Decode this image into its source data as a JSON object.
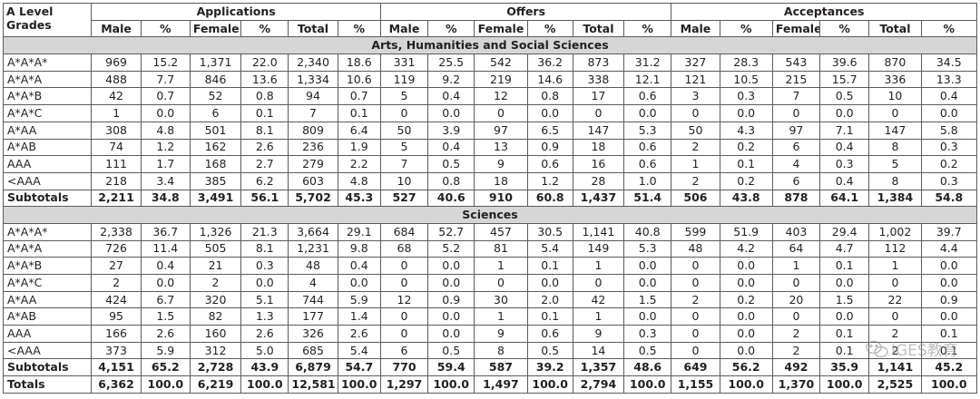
{
  "header": {
    "grades_label_line1": "A Level",
    "grades_label_line2": "Grades",
    "groups": [
      "Applications",
      "Offers",
      "Acceptances"
    ],
    "columns": [
      "Male",
      "%",
      "Female",
      "%",
      "Total",
      "%"
    ]
  },
  "sections": [
    {
      "title": "Arts, Humanities and Social Sciences",
      "rows": [
        {
          "grade": "A*A*A*",
          "cells": [
            "969",
            "15.2",
            "1,371",
            "22.0",
            "2,340",
            "18.6",
            "331",
            "25.5",
            "542",
            "36.2",
            "873",
            "31.2",
            "327",
            "28.3",
            "543",
            "39.6",
            "870",
            "34.5"
          ]
        },
        {
          "grade": "A*A*A",
          "cells": [
            "488",
            "7.7",
            "846",
            "13.6",
            "1,334",
            "10.6",
            "119",
            "9.2",
            "219",
            "14.6",
            "338",
            "12.1",
            "121",
            "10.5",
            "215",
            "15.7",
            "336",
            "13.3"
          ]
        },
        {
          "grade": "A*A*B",
          "cells": [
            "42",
            "0.7",
            "52",
            "0.8",
            "94",
            "0.7",
            "5",
            "0.4",
            "12",
            "0.8",
            "17",
            "0.6",
            "3",
            "0.3",
            "7",
            "0.5",
            "10",
            "0.4"
          ]
        },
        {
          "grade": "A*A*C",
          "cells": [
            "1",
            "0.0",
            "6",
            "0.1",
            "7",
            "0.1",
            "0",
            "0.0",
            "0",
            "0.0",
            "0",
            "0.0",
            "0",
            "0.0",
            "0",
            "0.0",
            "0",
            "0.0"
          ]
        },
        {
          "grade": "A*AA",
          "cells": [
            "308",
            "4.8",
            "501",
            "8.1",
            "809",
            "6.4",
            "50",
            "3.9",
            "97",
            "6.5",
            "147",
            "5.3",
            "50",
            "4.3",
            "97",
            "7.1",
            "147",
            "5.8"
          ]
        },
        {
          "grade": "A*AB",
          "cells": [
            "74",
            "1.2",
            "162",
            "2.6",
            "236",
            "1.9",
            "5",
            "0.4",
            "13",
            "0.9",
            "18",
            "0.6",
            "2",
            "0.2",
            "6",
            "0.4",
            "8",
            "0.3"
          ]
        },
        {
          "grade": "AAA",
          "cells": [
            "111",
            "1.7",
            "168",
            "2.7",
            "279",
            "2.2",
            "7",
            "0.5",
            "9",
            "0.6",
            "16",
            "0.6",
            "1",
            "0.1",
            "4",
            "0.3",
            "5",
            "0.2"
          ]
        },
        {
          "grade": "<AAA",
          "cells": [
            "218",
            "3.4",
            "385",
            "6.2",
            "603",
            "4.8",
            "10",
            "0.8",
            "18",
            "1.2",
            "28",
            "1.0",
            "2",
            "0.2",
            "6",
            "0.4",
            "8",
            "0.3"
          ]
        }
      ],
      "subtotal": {
        "label": "Subtotals",
        "cells": [
          "2,211",
          "34.8",
          "3,491",
          "56.1",
          "5,702",
          "45.3",
          "527",
          "40.6",
          "910",
          "60.8",
          "1,437",
          "51.4",
          "506",
          "43.8",
          "878",
          "64.1",
          "1,384",
          "54.8"
        ]
      }
    },
    {
      "title": "Sciences",
      "rows": [
        {
          "grade": "A*A*A*",
          "cells": [
            "2,338",
            "36.7",
            "1,326",
            "21.3",
            "3,664",
            "29.1",
            "684",
            "52.7",
            "457",
            "30.5",
            "1,141",
            "40.8",
            "599",
            "51.9",
            "403",
            "29.4",
            "1,002",
            "39.7"
          ]
        },
        {
          "grade": "A*A*A",
          "cells": [
            "726",
            "11.4",
            "505",
            "8.1",
            "1,231",
            "9.8",
            "68",
            "5.2",
            "81",
            "5.4",
            "149",
            "5.3",
            "48",
            "4.2",
            "64",
            "4.7",
            "112",
            "4.4"
          ]
        },
        {
          "grade": "A*A*B",
          "cells": [
            "27",
            "0.4",
            "21",
            "0.3",
            "48",
            "0.4",
            "0",
            "0.0",
            "1",
            "0.1",
            "1",
            "0.0",
            "0",
            "0.0",
            "1",
            "0.1",
            "1",
            "0.0"
          ]
        },
        {
          "grade": "A*A*C",
          "cells": [
            "2",
            "0.0",
            "2",
            "0.0",
            "4",
            "0.0",
            "0",
            "0.0",
            "0",
            "0.0",
            "0",
            "0.0",
            "0",
            "0.0",
            "0",
            "0.0",
            "0",
            "0.0"
          ]
        },
        {
          "grade": "A*AA",
          "cells": [
            "424",
            "6.7",
            "320",
            "5.1",
            "744",
            "5.9",
            "12",
            "0.9",
            "30",
            "2.0",
            "42",
            "1.5",
            "2",
            "0.2",
            "20",
            "1.5",
            "22",
            "0.9"
          ]
        },
        {
          "grade": "A*AB",
          "cells": [
            "95",
            "1.5",
            "82",
            "1.3",
            "177",
            "1.4",
            "0",
            "0.0",
            "1",
            "0.1",
            "1",
            "0.0",
            "0",
            "0.0",
            "0",
            "0.0",
            "0",
            "0.0"
          ]
        },
        {
          "grade": "AAA",
          "cells": [
            "166",
            "2.6",
            "160",
            "2.6",
            "326",
            "2.6",
            "0",
            "0.0",
            "9",
            "0.6",
            "9",
            "0.3",
            "0",
            "0.0",
            "2",
            "0.1",
            "2",
            "0.1"
          ]
        },
        {
          "grade": "<AAA",
          "cells": [
            "373",
            "5.9",
            "312",
            "5.0",
            "685",
            "5.4",
            "6",
            "0.5",
            "8",
            "0.5",
            "14",
            "0.5",
            "0",
            "0.0",
            "2",
            "0.1",
            "2",
            "0.1"
          ]
        }
      ],
      "subtotal": {
        "label": "Subtotals",
        "cells": [
          "4,151",
          "65.2",
          "2,728",
          "43.9",
          "6,879",
          "54.7",
          "770",
          "59.4",
          "587",
          "39.2",
          "1,357",
          "48.6",
          "649",
          "56.2",
          "492",
          "35.9",
          "1,141",
          "45.2"
        ]
      }
    }
  ],
  "totals": {
    "label": "Totals",
    "cells": [
      "6,362",
      "100.0",
      "6,219",
      "100.0",
      "12,581",
      "100.0",
      "1,297",
      "100.0",
      "1,497",
      "100.0",
      "2,794",
      "100.0",
      "1,155",
      "100.0",
      "1,370",
      "100.0",
      "2,525",
      "100.0"
    ]
  },
  "watermark": {
    "text": "IGES教育",
    "icon": "wechat-logo-icon"
  }
}
